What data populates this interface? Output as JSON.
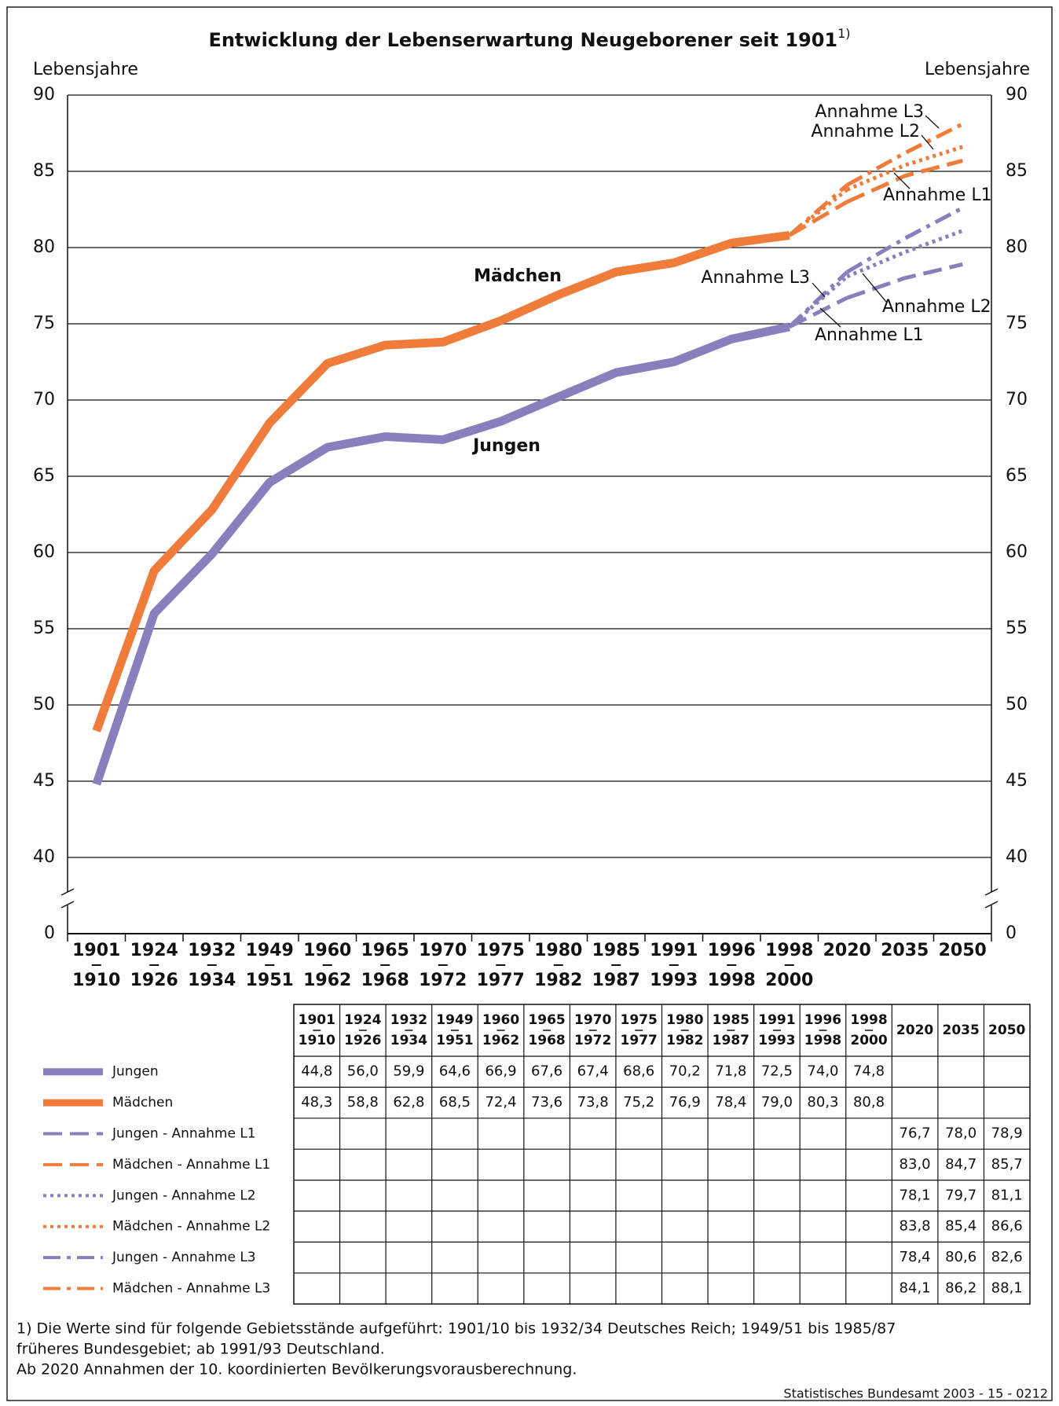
{
  "chart_data": {
    "type": "line",
    "title": "Entwicklung der Lebenserwartung Neugeborener seit 1901",
    "title_note": "1)",
    "y_label": "Lebensjahre",
    "y2_label": "Lebensjahre",
    "categories": [
      [
        "1901",
        "1910"
      ],
      [
        "1924",
        "1926"
      ],
      [
        "1932",
        "1934"
      ],
      [
        "1949",
        "1951"
      ],
      [
        "1960",
        "1962"
      ],
      [
        "1965",
        "1968"
      ],
      [
        "1970",
        "1972"
      ],
      [
        "1975",
        "1977"
      ],
      [
        "1980",
        "1982"
      ],
      [
        "1985",
        "1987"
      ],
      [
        "1991",
        "1993"
      ],
      [
        "1996",
        "1998"
      ],
      [
        "1998",
        "2000"
      ],
      [
        "2020"
      ],
      [
        "2035"
      ],
      [
        "2050"
      ]
    ],
    "ylim": [
      40,
      90
    ],
    "yticks": [
      0,
      40,
      45,
      50,
      55,
      60,
      65,
      70,
      75,
      80,
      85,
      90
    ],
    "axis_break": true,
    "grid": true,
    "series": [
      {
        "name": "Jungen",
        "color": "#8a7fbd",
        "dash": "solid",
        "values": [
          44.8,
          56.0,
          59.9,
          64.6,
          66.9,
          67.6,
          67.4,
          68.6,
          70.2,
          71.8,
          72.5,
          74.0,
          74.8,
          null,
          null,
          null
        ],
        "value_labels": [
          "44,8",
          "56,0",
          "59,9",
          "64,6",
          "66,9",
          "67,6",
          "67,4",
          "68,6",
          "70,2",
          "71,8",
          "72,5",
          "74,0",
          "74,8",
          null,
          null,
          null
        ]
      },
      {
        "name": "Mädchen",
        "color": "#f07c3c",
        "dash": "solid",
        "values": [
          48.3,
          58.8,
          62.8,
          68.5,
          72.4,
          73.6,
          73.8,
          75.2,
          76.9,
          78.4,
          79.0,
          80.3,
          80.8,
          null,
          null,
          null
        ],
        "value_labels": [
          "48,3",
          "58,8",
          "62,8",
          "68,5",
          "72,4",
          "73,6",
          "73,8",
          "75,2",
          "76,9",
          "78,4",
          "79,0",
          "80,3",
          "80,8",
          null,
          null,
          null
        ]
      },
      {
        "name": "Jungen - Annahme L1",
        "color": "#8a7fbd",
        "dash": "dashed",
        "values": [
          null,
          null,
          null,
          null,
          null,
          null,
          null,
          null,
          null,
          null,
          null,
          null,
          null,
          76.7,
          78.0,
          78.9
        ],
        "value_labels": [
          null,
          null,
          null,
          null,
          null,
          null,
          null,
          null,
          null,
          null,
          null,
          null,
          null,
          "76,7",
          "78,0",
          "78,9"
        ]
      },
      {
        "name": "Mädchen - Annahme L1",
        "color": "#f07c3c",
        "dash": "dashed",
        "values": [
          null,
          null,
          null,
          null,
          null,
          null,
          null,
          null,
          null,
          null,
          null,
          null,
          null,
          83.0,
          84.7,
          85.7
        ],
        "value_labels": [
          null,
          null,
          null,
          null,
          null,
          null,
          null,
          null,
          null,
          null,
          null,
          null,
          null,
          "83,0",
          "84,7",
          "85,7"
        ]
      },
      {
        "name": "Jungen - Annahme L2",
        "color": "#8a7fbd",
        "dash": "dotted",
        "values": [
          null,
          null,
          null,
          null,
          null,
          null,
          null,
          null,
          null,
          null,
          null,
          null,
          null,
          78.1,
          79.7,
          81.1
        ],
        "value_labels": [
          null,
          null,
          null,
          null,
          null,
          null,
          null,
          null,
          null,
          null,
          null,
          null,
          null,
          "78,1",
          "79,7",
          "81,1"
        ]
      },
      {
        "name": "Mädchen - Annahme L2",
        "color": "#f07c3c",
        "dash": "dotted",
        "values": [
          null,
          null,
          null,
          null,
          null,
          null,
          null,
          null,
          null,
          null,
          null,
          null,
          null,
          83.8,
          85.4,
          86.6
        ],
        "value_labels": [
          null,
          null,
          null,
          null,
          null,
          null,
          null,
          null,
          null,
          null,
          null,
          null,
          null,
          "83,8",
          "85,4",
          "86,6"
        ]
      },
      {
        "name": "Jungen - Annahme L3",
        "color": "#8a7fbd",
        "dash": "dashdot",
        "values": [
          null,
          null,
          null,
          null,
          null,
          null,
          null,
          null,
          null,
          null,
          null,
          null,
          null,
          78.4,
          80.6,
          82.6
        ],
        "value_labels": [
          null,
          null,
          null,
          null,
          null,
          null,
          null,
          null,
          null,
          null,
          null,
          null,
          null,
          "78,4",
          "80,6",
          "82,6"
        ]
      },
      {
        "name": "Mädchen - Annahme L3",
        "color": "#f07c3c",
        "dash": "dashdot",
        "values": [
          null,
          null,
          null,
          null,
          null,
          null,
          null,
          null,
          null,
          null,
          null,
          null,
          null,
          84.1,
          86.2,
          88.1
        ],
        "value_labels": [
          null,
          null,
          null,
          null,
          null,
          null,
          null,
          null,
          null,
          null,
          null,
          null,
          null,
          "84,1",
          "86,2",
          "88,1"
        ]
      }
    ],
    "annotations": [
      "Mädchen",
      "Jungen",
      "Annahme L3",
      "Annahme L2",
      "Annahme L1",
      "Annahme L3",
      "Annahme L2",
      "Annahme L1"
    ],
    "footnote": [
      "1) Die Werte sind für folgende Gebietsstände aufgeführt: 1901/10 bis 1932/34 Deutsches Reich; 1949/51 bis 1985/87",
      "früheres Bundesgebiet; ab 1991/93 Deutschland.",
      "Ab 2020 Annahmen der 10. koordinierten Bevölkerungsvorausberechnung."
    ],
    "source": "Statistisches Bundesamt 2003 - 15 - 0212"
  }
}
